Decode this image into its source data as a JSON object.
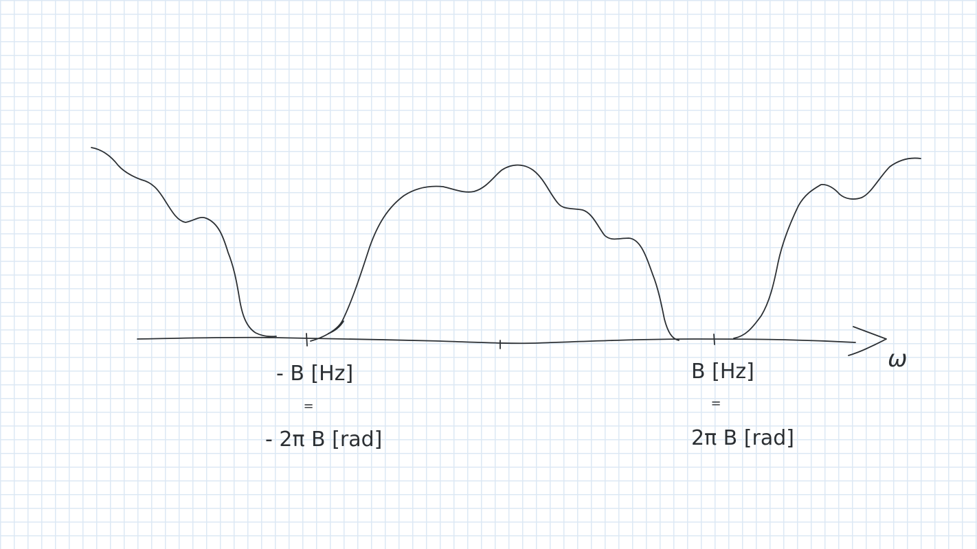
{
  "axis_label": "ω",
  "left_marker": {
    "hz_label": "- B [Hz]",
    "equal_sign": "॥",
    "rad_label": "- 2π B [rad]"
  },
  "right_marker": {
    "hz_label": "B [Hz]",
    "equal_sign": "॥",
    "rad_label": "2π B [rad]"
  },
  "colors": {
    "ink": "#2b2f33",
    "grid": "#dce8f4",
    "paper": "#ffffff"
  }
}
